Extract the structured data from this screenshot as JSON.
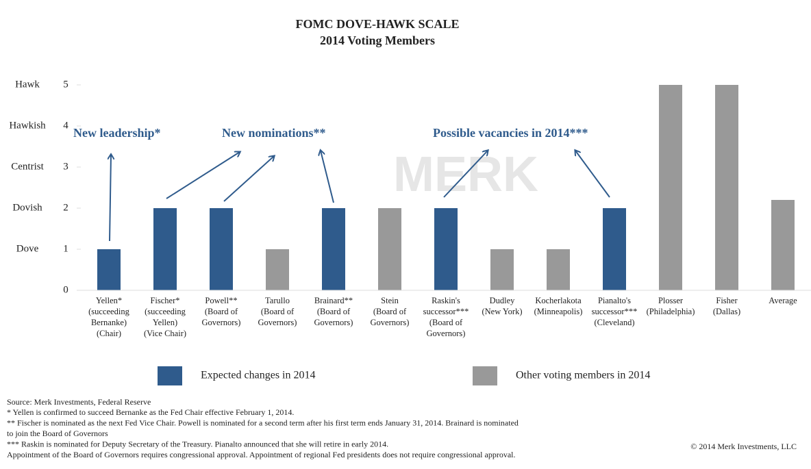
{
  "chart_data": {
    "type": "bar",
    "title": [
      "FOMC DOVE-HAWK SCALE",
      "2014 Voting Members"
    ],
    "categories": [
      [
        "Yellen*",
        "(succeeding",
        "Bernanke)",
        "(Chair)"
      ],
      [
        "Fischer*",
        "(succeeding",
        "Yellen)",
        "(Vice Chair)"
      ],
      [
        "Powell**",
        "(Board of",
        "Governors)"
      ],
      [
        "Tarullo",
        "(Board of",
        "Governors)"
      ],
      [
        "Brainard**",
        "(Board of",
        "Governors)"
      ],
      [
        "Stein",
        "(Board of",
        "Governors)"
      ],
      [
        "Raskin's",
        "successor***",
        "(Board of",
        "Governors)"
      ],
      [
        "Dudley",
        "(New York)"
      ],
      [
        "Kocherlakota",
        "(Minneapolis)"
      ],
      [
        "Pianalto's",
        "successor***",
        "(Cleveland)"
      ],
      [
        "Plosser",
        "(Philadelphia)"
      ],
      [
        "Fisher",
        "(Dallas)"
      ],
      [
        "Average"
      ]
    ],
    "series": [
      {
        "name": "Expected changes in 2014",
        "color": "#2f5b8c",
        "values": [
          1,
          2,
          2,
          null,
          2,
          null,
          2,
          null,
          null,
          2,
          null,
          null,
          null
        ]
      },
      {
        "name": "Other voting members in 2014",
        "color": "#999999",
        "values": [
          null,
          null,
          null,
          1,
          null,
          2,
          null,
          1,
          1,
          null,
          5,
          5,
          2.2
        ]
      }
    ],
    "ylim": [
      0,
      5
    ],
    "yticks": [
      0,
      1,
      2,
      3,
      4,
      5
    ],
    "scale_labels": [
      {
        "value": 1,
        "label": "Dove"
      },
      {
        "value": 2,
        "label": "Dovish"
      },
      {
        "value": 3,
        "label": "Centrist"
      },
      {
        "value": 4,
        "label": "Hawkish"
      },
      {
        "value": 5,
        "label": "Hawk"
      }
    ],
    "grid": false,
    "annotations": [
      "New leadership*",
      "New nominations**",
      "Possible vacancies in 2014***"
    ],
    "watermark": "MERK",
    "footnotes": [
      "Source: Merk Investments, Federal Reserve",
      "* Yellen is confirmed to succeed Bernanke as the Fed Chair effective February 1, 2014.",
      "** Fischer is nominated as the next Fed Vice Chair. Powell is nominated for a second term after his first term ends January 31, 2014. Brainard is nominated",
      "to join the Board of Governors",
      "*** Raskin is nominated for Deputy Secretary of the Treasury. Pianalto announced that she will retire in early 2014.",
      "Appointment of the Board of Governors requires congressional approval. Appointment of regional Fed presidents does not require congressional approval."
    ],
    "copyright": "© 2014 Merk Investments, LLC"
  }
}
